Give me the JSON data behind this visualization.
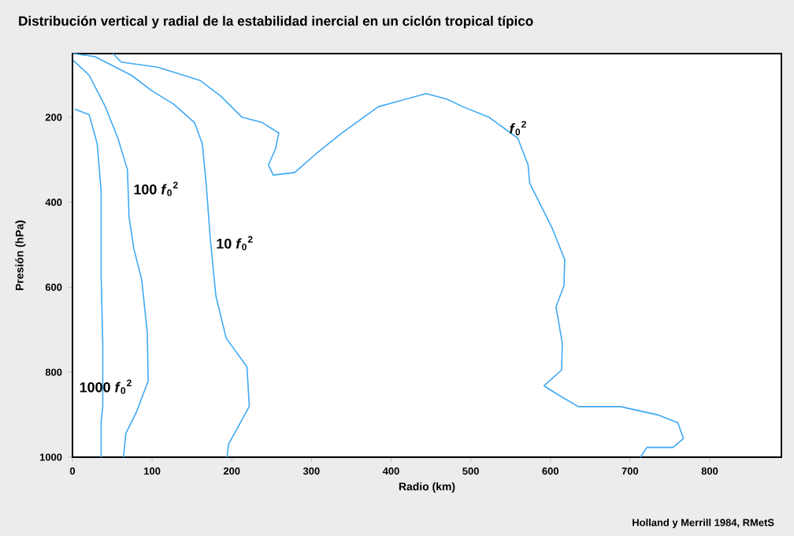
{
  "chart_data": {
    "type": "line",
    "title": "Distribución vertical y radial de la estabilidad inercial en un ciclón tropical típico",
    "xlabel": "Radio (km)",
    "ylabel": "Presión  (hPa)",
    "xlim": [
      0,
      890
    ],
    "ylim": [
      1000,
      50
    ],
    "xticks": [
      0,
      100,
      200,
      300,
      400,
      500,
      600,
      700,
      800
    ],
    "yticks": [
      200,
      400,
      600,
      800,
      1000
    ],
    "grid": false,
    "marker": "none",
    "line_style": "solid",
    "annotations": [
      "Holland y Merrill 1984, RMetS"
    ],
    "series": [
      {
        "name": "1000 *f*$_{0}$$^{2}$",
        "color": "#3fa9f5",
        "x": [
          3,
          21,
          31,
          36,
          36,
          38,
          38,
          36,
          36
        ],
        "values": [
          181,
          194,
          262,
          374,
          572,
          732,
          880,
          917,
          1000
        ]
      },
      {
        "name": "100 *f*$_{0}$$^{2}$",
        "color": "#3fa9f5",
        "x": [
          1,
          21,
          41,
          57,
          69,
          71,
          77,
          87,
          94,
          95,
          80,
          67,
          64
        ],
        "values": [
          66,
          101,
          174,
          249,
          323,
          434,
          509,
          583,
          709,
          821,
          895,
          944,
          1000
        ]
      },
      {
        "name": "10 *f*$_{0}$$^{2}$",
        "color": "#3fa9f5",
        "x": [
          1,
          28,
          74,
          100,
          127,
          153,
          163,
          168,
          173,
          180,
          193,
          219,
          222,
          209,
          196,
          194
        ],
        "values": [
          50,
          57,
          101,
          138,
          169,
          212,
          262,
          360,
          485,
          620,
          720,
          787,
          880,
          925,
          969,
          1000
        ]
      },
      {
        "name": "*f*$_{0}$$^{2}$",
        "color": "#3fa9f5",
        "x": [
          51,
          61,
          107,
          160,
          186,
          213,
          238,
          259,
          255,
          246,
          252,
          279,
          305,
          338,
          384,
          444,
          470,
          490,
          523,
          559,
          572,
          574,
          602,
          618,
          617,
          607,
          615,
          614,
          592,
          608,
          635,
          688,
          734,
          760,
          767,
          754,
          721,
          713
        ],
        "values": [
          50,
          70,
          82,
          113,
          150,
          200,
          212,
          237,
          274,
          312,
          336,
          330,
          287,
          237,
          175,
          144,
          157,
          175,
          200,
          249,
          312,
          355,
          460,
          535,
          597,
          646,
          732,
          795,
          832,
          851,
          881,
          881,
          900,
          919,
          956,
          977,
          977,
          1000
        ]
      }
    ]
  }
}
